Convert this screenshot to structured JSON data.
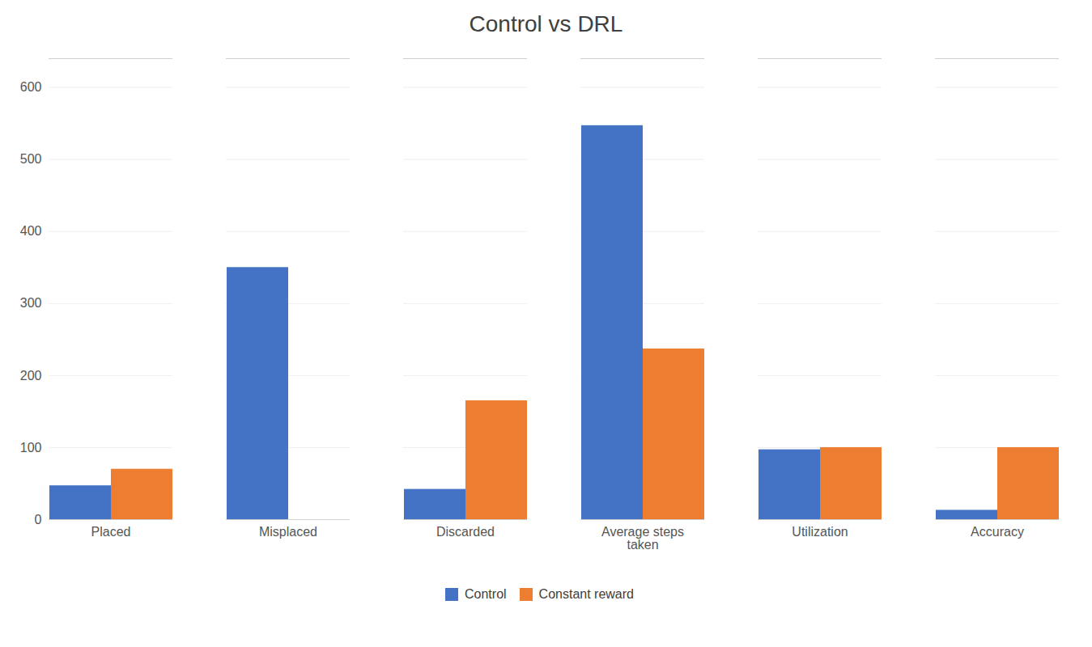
{
  "chart_data": {
    "type": "bar",
    "title": "Control vs DRL",
    "categories": [
      "Placed",
      "Misplaced",
      "Discarded",
      "Average steps\ntaken",
      "Utilization",
      "Accuracy"
    ],
    "series": [
      {
        "name": "Control",
        "color": "#4472C4",
        "values": [
          47,
          350,
          42,
          547,
          97,
          13
        ]
      },
      {
        "name": "Constant reward",
        "color": "#ED7D31",
        "values": [
          70,
          0,
          165,
          237,
          100,
          100
        ]
      }
    ],
    "ylim": [
      0,
      640
    ],
    "yticks": [
      0,
      100,
      200,
      300,
      400,
      500,
      600
    ],
    "grid": true,
    "legend": "bottom"
  }
}
